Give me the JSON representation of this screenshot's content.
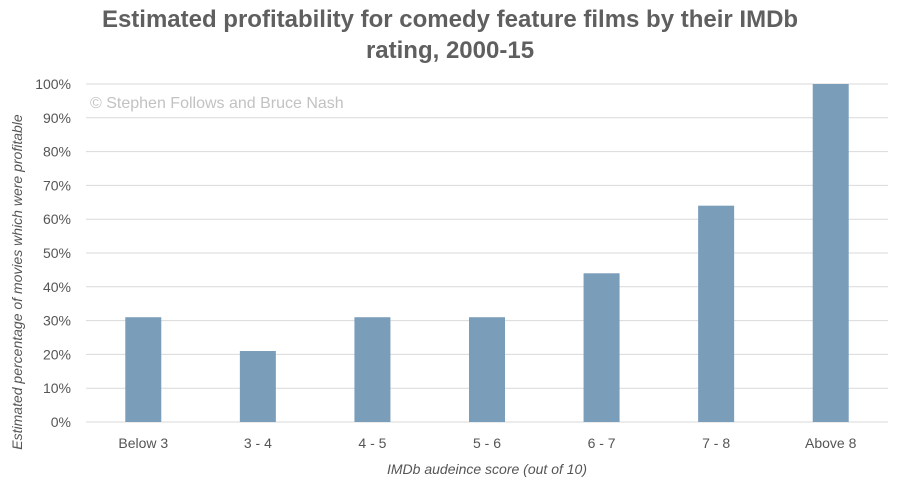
{
  "chart_data": {
    "type": "bar",
    "title_line1": "Estimated profitability for comedy feature films by their IMDb",
    "title_line2": "rating, 2000-15",
    "watermark": "© Stephen Follows and Bruce Nash",
    "xlabel": "IMDb audeince score (out of 10)",
    "ylabel": "Estimated percentage of movies which were profitable",
    "categories": [
      "Below 3",
      "3 - 4",
      "4 - 5",
      "5 - 6",
      "6 - 7",
      "7 - 8",
      "Above 8"
    ],
    "values": [
      31,
      21,
      31,
      31,
      44,
      64,
      100
    ],
    "ylim": [
      0,
      100
    ],
    "yticks": [
      "0%",
      "10%",
      "20%",
      "30%",
      "40%",
      "50%",
      "60%",
      "70%",
      "80%",
      "90%",
      "100%"
    ],
    "grid": true,
    "legend": "none",
    "bar_color": "#7a9dba",
    "grid_color": "#d9d9d9"
  }
}
